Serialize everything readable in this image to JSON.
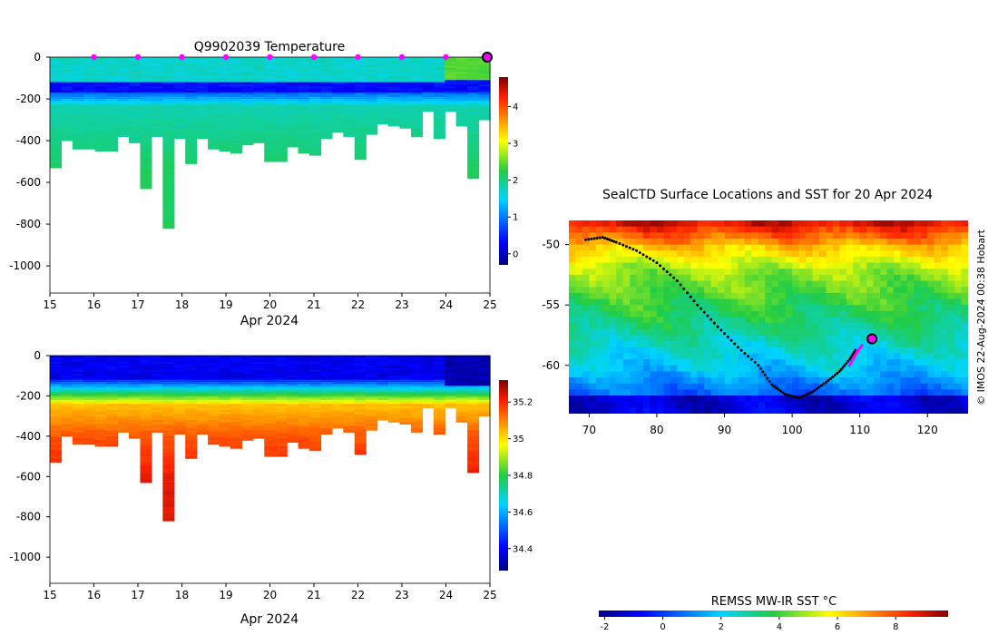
{
  "chart_data": [
    {
      "type": "heatmap",
      "title": "Q9902039  Temperature",
      "xlabel": "Apr 2024",
      "ylabel": "",
      "xlim": [
        15,
        25
      ],
      "ylim": [
        -1130,
        0
      ],
      "x_ticks": [
        "15",
        "16",
        "17",
        "18",
        "19",
        "20",
        "21",
        "22",
        "23",
        "24",
        "25"
      ],
      "y_ticks": [
        "0",
        "-200",
        "-400",
        "-600",
        "-800",
        "-1000"
      ],
      "colorbar_ticks": [
        "0",
        "1",
        "2",
        "3",
        "4"
      ],
      "colorbar_range": [
        -0.3,
        4.8
      ],
      "surface_markers_days": [
        16,
        17,
        18,
        19,
        20,
        21,
        22,
        23,
        24,
        25
      ],
      "profile_depths": [
        530,
        400,
        440,
        440,
        450,
        450,
        380,
        410,
        630,
        380,
        820,
        390,
        510,
        390,
        440,
        445,
        455,
        420,
        405,
        500,
        500,
        430,
        460,
        470,
        390,
        360,
        380,
        485,
        370,
        320,
        330,
        340,
        380,
        260,
        385,
        255,
        330,
        580,
        300
      ]
    },
    {
      "type": "heatmap",
      "title": "",
      "xlabel": "Apr 2024",
      "ylabel": "",
      "xlim": [
        15,
        25
      ],
      "ylim": [
        -1130,
        0
      ],
      "x_ticks": [
        "15",
        "16",
        "17",
        "18",
        "19",
        "20",
        "21",
        "22",
        "23",
        "24",
        "25"
      ],
      "y_ticks": [
        "0",
        "-200",
        "-400",
        "-600",
        "-800",
        "-1000"
      ],
      "colorbar_ticks": [
        "34.4",
        "34.6",
        "34.8",
        "35",
        "35.2"
      ],
      "colorbar_range": [
        34.28,
        35.32
      ]
    },
    {
      "type": "heatmap",
      "title": "SealCTD Surface Locations and SST for 20 Apr 2024",
      "xlabel": "",
      "ylabel": "",
      "xlim": [
        67,
        126
      ],
      "ylim": [
        -64,
        -48
      ],
      "x_ticks": [
        "70",
        "80",
        "90",
        "100",
        "110",
        "120"
      ],
      "y_ticks": [
        "-50",
        "-55",
        "-60"
      ],
      "track": [
        [
          69.5,
          -49.6
        ],
        [
          72,
          -49.4
        ],
        [
          74,
          -49.8
        ],
        [
          77,
          -50.5
        ],
        [
          80,
          -51.5
        ],
        [
          83,
          -53
        ],
        [
          86,
          -55
        ],
        [
          89,
          -56.8
        ],
        [
          92,
          -58.5
        ],
        [
          95,
          -60
        ],
        [
          97,
          -61.6
        ],
        [
          99,
          -62.4
        ],
        [
          101,
          -62.7
        ],
        [
          103,
          -62.2
        ],
        [
          105,
          -61.4
        ],
        [
          107,
          -60.5
        ],
        [
          108.5,
          -59.5
        ],
        [
          109.5,
          -58.6
        ]
      ],
      "track_recent": [
        [
          108.5,
          -60
        ],
        [
          109.5,
          -59
        ],
        [
          110.5,
          -58.2
        ]
      ],
      "last_position": [
        111.8,
        -57.8
      ],
      "colorbar_label": "REMSS MW-IR SST °C",
      "colorbar_ticks": [
        "-2",
        "0",
        "2",
        "4",
        "6",
        "8"
      ],
      "colorbar_range": [
        -2.2,
        9.8
      ],
      "credit": "© IMOS 22-Aug-2024 00:38 Hobart"
    }
  ],
  "colors": {
    "marker": "#ff00ff",
    "track": "#000000",
    "axis": "#000000"
  }
}
